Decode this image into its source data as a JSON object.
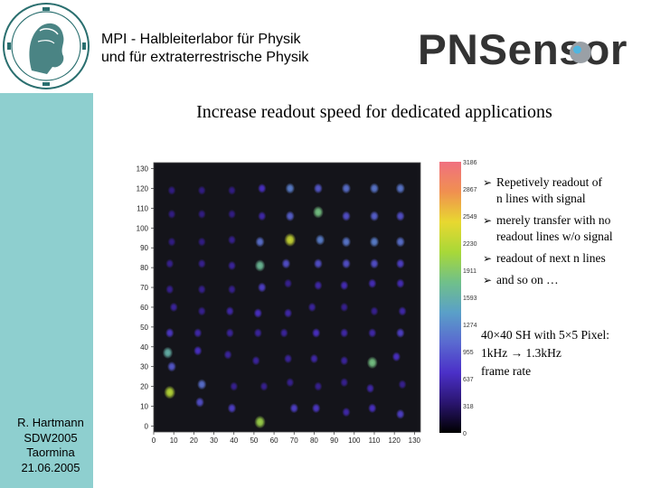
{
  "header": {
    "org_line1": "MPI  -   Halbleiterlabor für Physik",
    "org_line2": "und für extraterrestrische Physik",
    "logo_text": "PNSensor"
  },
  "slide": {
    "title": "Increase readout speed for dedicated applications"
  },
  "author": {
    "name": "R. Hartmann",
    "event": "SDW2005",
    "place": "Taormina",
    "date": "21.06.2005"
  },
  "bullets": [
    {
      "line1": "Repetively readout of",
      "line2": "n lines with signal"
    },
    {
      "line1": "merely transfer with no",
      "line2": "readout lines w/o signal"
    },
    {
      "line1": "readout of next n lines",
      "line2": ""
    },
    {
      "line1": "and so on …",
      "line2": ""
    }
  ],
  "note": {
    "line1": "40×40 SH with 5×5 Pixel:",
    "line2": "1kHz → 1.3kHz",
    "line3": "frame rate"
  },
  "chart_data": {
    "type": "heatmap",
    "x_ticks": [
      "0",
      "10",
      "20",
      "30",
      "40",
      "50",
      "60",
      "70",
      "80",
      "90",
      "100",
      "110",
      "120",
      "130"
    ],
    "y_ticks": [
      "0",
      "10",
      "20",
      "30",
      "40",
      "50",
      "60",
      "70",
      "80",
      "90",
      "100",
      "110",
      "120",
      "130"
    ],
    "xlim": [
      0,
      133
    ],
    "ylim": [
      -3,
      133
    ],
    "colorbar_ticks": [
      "3186",
      "2867",
      "2549",
      "2230",
      "1911",
      "1593",
      "1274",
      "955",
      "637",
      "318",
      "0"
    ],
    "colorbar_range": [
      0,
      3186
    ],
    "colors": {
      "background": "#14141a",
      "scale": [
        "#000000",
        "#2a1570",
        "#4b30c8",
        "#5a6ad0",
        "#5aa0c8",
        "#70c08a",
        "#a8d838",
        "#e8d830",
        "#f09050",
        "#f07080"
      ]
    },
    "spots": [
      {
        "x": 8,
        "y": 17,
        "v": 2200
      },
      {
        "x": 23,
        "y": 12,
        "v": 900
      },
      {
        "x": 39,
        "y": 9,
        "v": 800
      },
      {
        "x": 53,
        "y": 2,
        "v": 2050
      },
      {
        "x": 70,
        "y": 9,
        "v": 800
      },
      {
        "x": 81,
        "y": 9,
        "v": 750
      },
      {
        "x": 96,
        "y": 7,
        "v": 600
      },
      {
        "x": 109,
        "y": 9,
        "v": 700
      },
      {
        "x": 123,
        "y": 6,
        "v": 800
      },
      {
        "x": 9,
        "y": 30,
        "v": 950
      },
      {
        "x": 24,
        "y": 21,
        "v": 1100
      },
      {
        "x": 40,
        "y": 20,
        "v": 500
      },
      {
        "x": 55,
        "y": 20,
        "v": 500
      },
      {
        "x": 68,
        "y": 22,
        "v": 500
      },
      {
        "x": 82,
        "y": 20,
        "v": 500
      },
      {
        "x": 95,
        "y": 22,
        "v": 500
      },
      {
        "x": 108,
        "y": 19,
        "v": 600
      },
      {
        "x": 124,
        "y": 21,
        "v": 500
      },
      {
        "x": 7,
        "y": 37,
        "v": 1600
      },
      {
        "x": 22,
        "y": 38,
        "v": 700
      },
      {
        "x": 37,
        "y": 36,
        "v": 550
      },
      {
        "x": 51,
        "y": 33,
        "v": 550
      },
      {
        "x": 67,
        "y": 34,
        "v": 550
      },
      {
        "x": 80,
        "y": 34,
        "v": 600
      },
      {
        "x": 95,
        "y": 33,
        "v": 550
      },
      {
        "x": 109,
        "y": 32,
        "v": 1800
      },
      {
        "x": 121,
        "y": 35,
        "v": 700
      },
      {
        "x": 8,
        "y": 47,
        "v": 750
      },
      {
        "x": 22,
        "y": 47,
        "v": 600
      },
      {
        "x": 38,
        "y": 47,
        "v": 550
      },
      {
        "x": 52,
        "y": 47,
        "v": 550
      },
      {
        "x": 65,
        "y": 47,
        "v": 550
      },
      {
        "x": 81,
        "y": 47,
        "v": 700
      },
      {
        "x": 95,
        "y": 47,
        "v": 600
      },
      {
        "x": 109,
        "y": 47,
        "v": 600
      },
      {
        "x": 123,
        "y": 47,
        "v": 800
      },
      {
        "x": 10,
        "y": 60,
        "v": 550
      },
      {
        "x": 24,
        "y": 58,
        "v": 500
      },
      {
        "x": 38,
        "y": 58,
        "v": 600
      },
      {
        "x": 52,
        "y": 57,
        "v": 700
      },
      {
        "x": 67,
        "y": 57,
        "v": 600
      },
      {
        "x": 79,
        "y": 60,
        "v": 550
      },
      {
        "x": 95,
        "y": 60,
        "v": 500
      },
      {
        "x": 110,
        "y": 58,
        "v": 500
      },
      {
        "x": 124,
        "y": 58,
        "v": 600
      },
      {
        "x": 8,
        "y": 69,
        "v": 500
      },
      {
        "x": 24,
        "y": 69,
        "v": 500
      },
      {
        "x": 39,
        "y": 69,
        "v": 500
      },
      {
        "x": 54,
        "y": 70,
        "v": 800
      },
      {
        "x": 67,
        "y": 72,
        "v": 500
      },
      {
        "x": 82,
        "y": 71,
        "v": 600
      },
      {
        "x": 95,
        "y": 71,
        "v": 650
      },
      {
        "x": 109,
        "y": 72,
        "v": 650
      },
      {
        "x": 123,
        "y": 72,
        "v": 650
      },
      {
        "x": 8,
        "y": 82,
        "v": 500
      },
      {
        "x": 24,
        "y": 82,
        "v": 500
      },
      {
        "x": 39,
        "y": 81,
        "v": 550
      },
      {
        "x": 53,
        "y": 81,
        "v": 1700
      },
      {
        "x": 66,
        "y": 82,
        "v": 900
      },
      {
        "x": 82,
        "y": 82,
        "v": 900
      },
      {
        "x": 96,
        "y": 82,
        "v": 900
      },
      {
        "x": 110,
        "y": 82,
        "v": 900
      },
      {
        "x": 123,
        "y": 82,
        "v": 800
      },
      {
        "x": 9,
        "y": 93,
        "v": 450
      },
      {
        "x": 24,
        "y": 93,
        "v": 450
      },
      {
        "x": 39,
        "y": 94,
        "v": 500
      },
      {
        "x": 53,
        "y": 93,
        "v": 1100
      },
      {
        "x": 68,
        "y": 94,
        "v": 2300
      },
      {
        "x": 83,
        "y": 94,
        "v": 1200
      },
      {
        "x": 96,
        "y": 93,
        "v": 1150
      },
      {
        "x": 110,
        "y": 93,
        "v": 1200
      },
      {
        "x": 123,
        "y": 93,
        "v": 1100
      },
      {
        "x": 9,
        "y": 107,
        "v": 450
      },
      {
        "x": 24,
        "y": 107,
        "v": 450
      },
      {
        "x": 39,
        "y": 107,
        "v": 450
      },
      {
        "x": 54,
        "y": 106,
        "v": 600
      },
      {
        "x": 68,
        "y": 106,
        "v": 1000
      },
      {
        "x": 82,
        "y": 108,
        "v": 1800
      },
      {
        "x": 96,
        "y": 106,
        "v": 900
      },
      {
        "x": 110,
        "y": 106,
        "v": 1000
      },
      {
        "x": 123,
        "y": 106,
        "v": 900
      },
      {
        "x": 9,
        "y": 119,
        "v": 450
      },
      {
        "x": 24,
        "y": 119,
        "v": 450
      },
      {
        "x": 39,
        "y": 119,
        "v": 450
      },
      {
        "x": 54,
        "y": 120,
        "v": 700
      },
      {
        "x": 68,
        "y": 120,
        "v": 1200
      },
      {
        "x": 82,
        "y": 120,
        "v": 950
      },
      {
        "x": 96,
        "y": 120,
        "v": 1100
      },
      {
        "x": 110,
        "y": 120,
        "v": 1150
      },
      {
        "x": 123,
        "y": 120,
        "v": 1150
      }
    ]
  }
}
